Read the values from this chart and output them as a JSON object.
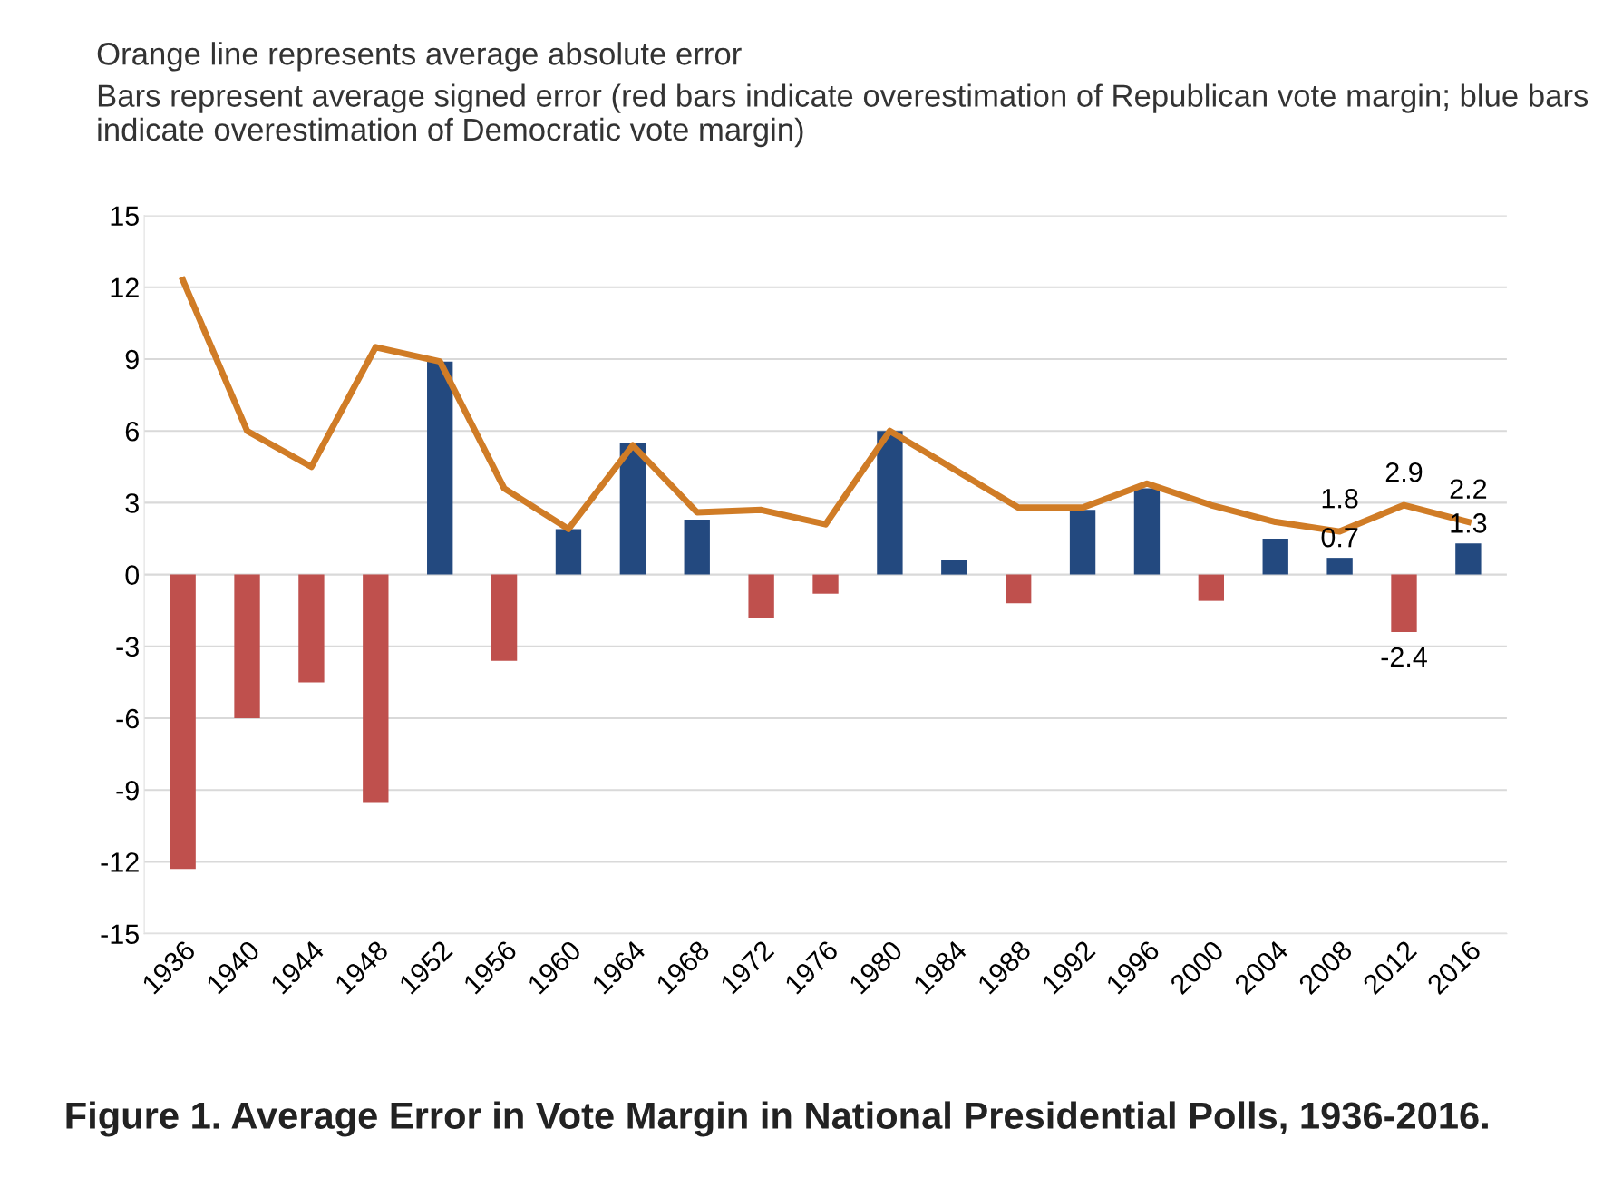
{
  "chart_data": {
    "type": "bar",
    "title": "Orange line represents average absolute error",
    "subtitle": "Bars represent average signed error (red bars indicate overestimation of Republican vote margin; blue bars indicate overestimation of Democratic vote margin)",
    "categories": [
      "1936",
      "1940",
      "1944",
      "1948",
      "1952",
      "1956",
      "1960",
      "1964",
      "1968",
      "1972",
      "1976",
      "1980",
      "1984",
      "1988",
      "1992",
      "1996",
      "2000",
      "2004",
      "2008",
      "2012",
      "2016"
    ],
    "series": [
      {
        "colors": [
          "#bf504d",
          "#bf504d",
          "#bf504d",
          "#bf504d",
          "#23497f",
          "#bf504d",
          "#23497f",
          "#23497f",
          "#23497f",
          "#bf504d",
          "#bf504d",
          "#23497f",
          "#23497f",
          "#bf504d",
          "#23497f",
          "#23497f",
          "#bf504d",
          "#23497f",
          "#23497f",
          "#bf504d",
          "#23497f"
        ],
        "values": [
          -12.3,
          -6.0,
          -4.5,
          -9.5,
          8.9,
          -3.6,
          1.9,
          5.5,
          2.3,
          -1.8,
          -0.8,
          6.0,
          0.6,
          -1.2,
          2.7,
          3.6,
          -1.1,
          1.5,
          0.7,
          -2.4,
          1.3
        ],
        "value_labels": [
          null,
          null,
          null,
          null,
          null,
          null,
          null,
          null,
          null,
          null,
          null,
          null,
          null,
          null,
          null,
          null,
          null,
          null,
          "0.7",
          "-2.4",
          "1.3"
        ]
      },
      {
        "type": "line",
        "color": "#d07c26",
        "values": [
          12.3,
          6.0,
          4.5,
          9.5,
          8.9,
          3.6,
          1.9,
          5.4,
          2.6,
          2.7,
          2.1,
          6.0,
          4.4,
          2.8,
          2.8,
          3.8,
          2.9,
          2.2,
          1.8,
          2.9,
          2.2
        ],
        "value_labels": [
          null,
          null,
          null,
          null,
          null,
          null,
          null,
          null,
          null,
          null,
          null,
          null,
          null,
          null,
          null,
          null,
          null,
          null,
          "1.8",
          "2.9",
          "2.2"
        ]
      }
    ],
    "ylim": [
      -15,
      15
    ],
    "yticks": [
      -15,
      -12,
      -9,
      -6,
      -3,
      0,
      3,
      6,
      9,
      12,
      15
    ],
    "grid": "y",
    "marker": "none",
    "line_style": "solid",
    "annotations": [
      "Figure 1. Average Error in Vote Margin in National Presidential Polls, 1936-2016."
    ]
  }
}
